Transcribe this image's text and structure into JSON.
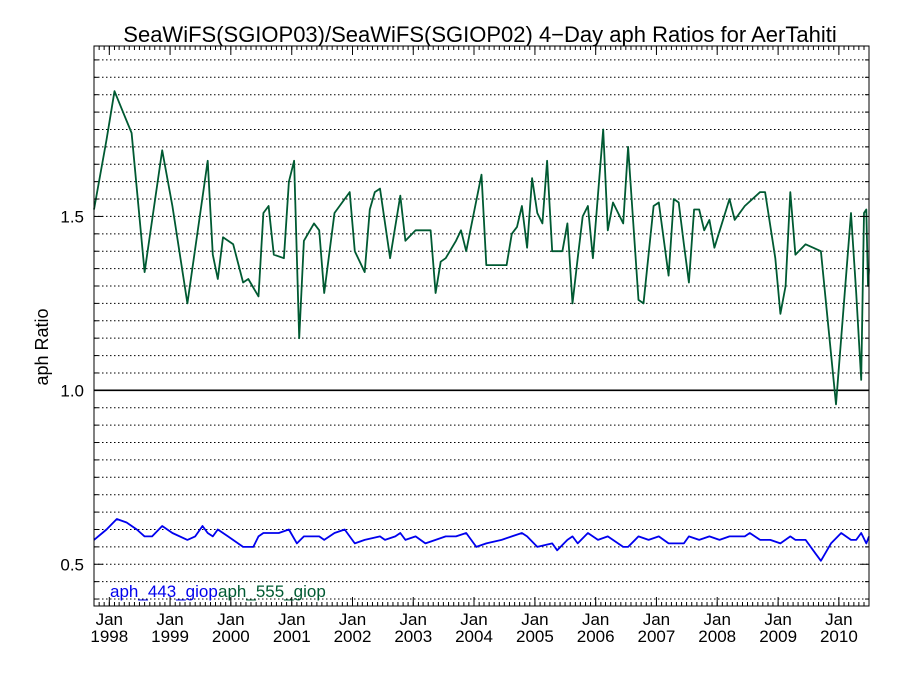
{
  "chart_data": {
    "type": "line",
    "title": "SeaWiFS(SGIOP03)/SeaWiFS(SGIOP02) 4−Day aph Ratios for AerTahiti",
    "xlabel": "",
    "ylabel": "aph Ratio",
    "xlim": [
      "1997-10-01",
      "2010-07-01"
    ],
    "ylim": [
      0.38,
      1.99
    ],
    "y_ticks": [
      "0.5",
      "1.0",
      "1.5"
    ],
    "x_ticks": [
      {
        "date": "1998-01-01",
        "month": "Jan",
        "year": "1998"
      },
      {
        "date": "1999-01-01",
        "month": "Jan",
        "year": "1999"
      },
      {
        "date": "2000-01-01",
        "month": "Jan",
        "year": "2000"
      },
      {
        "date": "2001-01-01",
        "month": "Jan",
        "year": "2001"
      },
      {
        "date": "2002-01-01",
        "month": "Jan",
        "year": "2002"
      },
      {
        "date": "2003-01-01",
        "month": "Jan",
        "year": "2003"
      },
      {
        "date": "2004-01-01",
        "month": "Jan",
        "year": "2004"
      },
      {
        "date": "2005-01-01",
        "month": "Jan",
        "year": "2005"
      },
      {
        "date": "2006-01-01",
        "month": "Jan",
        "year": "2006"
      },
      {
        "date": "2007-01-01",
        "month": "Jan",
        "year": "2007"
      },
      {
        "date": "2008-01-01",
        "month": "Jan",
        "year": "2008"
      },
      {
        "date": "2009-01-01",
        "month": "Jan",
        "year": "2009"
      },
      {
        "date": "2010-01-01",
        "month": "Jan",
        "year": "2010"
      }
    ],
    "reference_line": 1.0,
    "grid": true,
    "legend_placement": "bottom-left",
    "series": [
      {
        "name": "aph_443_giop",
        "color": "#0000ee",
        "points": [
          [
            "1997-10-01",
            0.57
          ],
          [
            "1997-12-15",
            0.6
          ],
          [
            "1998-02-15",
            0.63
          ],
          [
            "1998-04-15",
            0.62
          ],
          [
            "1998-06-15",
            0.6
          ],
          [
            "1998-08-01",
            0.58
          ],
          [
            "1998-09-15",
            0.58
          ],
          [
            "1998-11-15",
            0.61
          ],
          [
            "1999-01-15",
            0.59
          ],
          [
            "1999-04-15",
            0.57
          ],
          [
            "1999-06-01",
            0.58
          ],
          [
            "1999-07-15",
            0.61
          ],
          [
            "1999-08-15",
            0.59
          ],
          [
            "1999-09-15",
            0.58
          ],
          [
            "1999-10-15",
            0.6
          ],
          [
            "1999-12-15",
            0.58
          ],
          [
            "2000-03-15",
            0.55
          ],
          [
            "2000-05-15",
            0.55
          ],
          [
            "2000-06-15",
            0.58
          ],
          [
            "2000-07-15",
            0.59
          ],
          [
            "2000-10-15",
            0.59
          ],
          [
            "2000-12-15",
            0.6
          ],
          [
            "2001-02-01",
            0.56
          ],
          [
            "2001-03-15",
            0.58
          ],
          [
            "2001-06-15",
            0.58
          ],
          [
            "2001-07-15",
            0.57
          ],
          [
            "2001-09-15",
            0.59
          ],
          [
            "2001-11-15",
            0.6
          ],
          [
            "2002-01-15",
            0.56
          ],
          [
            "2002-03-15",
            0.57
          ],
          [
            "2002-06-15",
            0.58
          ],
          [
            "2002-07-15",
            0.57
          ],
          [
            "2002-09-15",
            0.58
          ],
          [
            "2002-10-15",
            0.59
          ],
          [
            "2002-11-15",
            0.57
          ],
          [
            "2003-01-15",
            0.58
          ],
          [
            "2003-03-15",
            0.56
          ],
          [
            "2003-05-15",
            0.57
          ],
          [
            "2003-07-15",
            0.58
          ],
          [
            "2003-09-15",
            0.58
          ],
          [
            "2003-11-15",
            0.59
          ],
          [
            "2004-01-15",
            0.55
          ],
          [
            "2004-03-15",
            0.56
          ],
          [
            "2004-06-15",
            0.57
          ],
          [
            "2004-08-15",
            0.58
          ],
          [
            "2004-10-15",
            0.59
          ],
          [
            "2004-11-15",
            0.58
          ],
          [
            "2005-01-15",
            0.55
          ],
          [
            "2005-04-15",
            0.56
          ],
          [
            "2005-05-15",
            0.54
          ],
          [
            "2005-07-15",
            0.57
          ],
          [
            "2005-08-15",
            0.58
          ],
          [
            "2005-09-15",
            0.56
          ],
          [
            "2005-11-15",
            0.59
          ],
          [
            "2006-01-15",
            0.57
          ],
          [
            "2006-03-15",
            0.58
          ],
          [
            "2006-06-15",
            0.55
          ],
          [
            "2006-07-15",
            0.55
          ],
          [
            "2006-09-15",
            0.58
          ],
          [
            "2006-11-15",
            0.57
          ],
          [
            "2007-01-15",
            0.58
          ],
          [
            "2007-03-15",
            0.56
          ],
          [
            "2007-06-15",
            0.56
          ],
          [
            "2007-07-15",
            0.58
          ],
          [
            "2007-09-15",
            0.57
          ],
          [
            "2007-11-15",
            0.58
          ],
          [
            "2008-01-15",
            0.57
          ],
          [
            "2008-03-15",
            0.58
          ],
          [
            "2008-06-15",
            0.58
          ],
          [
            "2008-07-15",
            0.59
          ],
          [
            "2008-09-15",
            0.57
          ],
          [
            "2008-11-15",
            0.57
          ],
          [
            "2009-01-15",
            0.56
          ],
          [
            "2009-03-15",
            0.58
          ],
          [
            "2009-04-15",
            0.57
          ],
          [
            "2009-06-15",
            0.57
          ],
          [
            "2009-08-15",
            0.53
          ],
          [
            "2009-09-15",
            0.51
          ],
          [
            "2009-11-15",
            0.56
          ],
          [
            "2010-01-15",
            0.59
          ],
          [
            "2010-03-15",
            0.57
          ],
          [
            "2010-04-15",
            0.57
          ],
          [
            "2010-05-15",
            0.59
          ],
          [
            "2010-06-15",
            0.56
          ],
          [
            "2010-07-01",
            0.58
          ]
        ]
      },
      {
        "name": "aph_555_giop",
        "color": "#005a32",
        "points": [
          [
            "1997-10-01",
            1.52
          ],
          [
            "1997-12-15",
            1.72
          ],
          [
            "1998-02-01",
            1.86
          ],
          [
            "1998-05-15",
            1.74
          ],
          [
            "1998-08-01",
            1.34
          ],
          [
            "1998-11-15",
            1.69
          ],
          [
            "1999-01-15",
            1.53
          ],
          [
            "1999-04-15",
            1.25
          ],
          [
            "1999-08-15",
            1.66
          ],
          [
            "1999-09-15",
            1.39
          ],
          [
            "1999-10-15",
            1.32
          ],
          [
            "1999-11-15",
            1.44
          ],
          [
            "2000-01-15",
            1.42
          ],
          [
            "2000-03-15",
            1.31
          ],
          [
            "2000-04-15",
            1.32
          ],
          [
            "2000-06-15",
            1.27
          ],
          [
            "2000-07-15",
            1.51
          ],
          [
            "2000-08-15",
            1.53
          ],
          [
            "2000-09-15",
            1.39
          ],
          [
            "2000-11-15",
            1.38
          ],
          [
            "2000-12-15",
            1.6
          ],
          [
            "2001-01-15",
            1.66
          ],
          [
            "2001-02-15",
            1.15
          ],
          [
            "2001-03-15",
            1.43
          ],
          [
            "2001-05-15",
            1.48
          ],
          [
            "2001-06-15",
            1.46
          ],
          [
            "2001-07-15",
            1.28
          ],
          [
            "2001-09-15",
            1.51
          ],
          [
            "2001-11-15",
            1.55
          ],
          [
            "2001-12-15",
            1.57
          ],
          [
            "2002-01-15",
            1.4
          ],
          [
            "2002-03-15",
            1.34
          ],
          [
            "2002-04-15",
            1.52
          ],
          [
            "2002-05-15",
            1.57
          ],
          [
            "2002-06-15",
            1.58
          ],
          [
            "2002-08-15",
            1.38
          ],
          [
            "2002-10-15",
            1.56
          ],
          [
            "2002-11-15",
            1.43
          ],
          [
            "2003-01-15",
            1.46
          ],
          [
            "2003-03-15",
            1.46
          ],
          [
            "2003-04-15",
            1.46
          ],
          [
            "2003-05-15",
            1.28
          ],
          [
            "2003-06-15",
            1.37
          ],
          [
            "2003-07-15",
            1.38
          ],
          [
            "2003-09-15",
            1.43
          ],
          [
            "2003-10-15",
            1.46
          ],
          [
            "2003-11-15",
            1.4
          ],
          [
            "2004-02-15",
            1.62
          ],
          [
            "2004-03-15",
            1.36
          ],
          [
            "2004-07-15",
            1.36
          ],
          [
            "2004-08-15",
            1.45
          ],
          [
            "2004-09-15",
            1.47
          ],
          [
            "2004-10-15",
            1.53
          ],
          [
            "2004-11-15",
            1.41
          ],
          [
            "2004-12-15",
            1.61
          ],
          [
            "2005-01-15",
            1.51
          ],
          [
            "2005-02-15",
            1.48
          ],
          [
            "2005-03-15",
            1.66
          ],
          [
            "2005-04-15",
            1.4
          ],
          [
            "2005-05-15",
            1.4
          ],
          [
            "2005-06-15",
            1.4
          ],
          [
            "2005-07-15",
            1.48
          ],
          [
            "2005-08-15",
            1.25
          ],
          [
            "2005-09-15",
            1.38
          ],
          [
            "2005-10-15",
            1.5
          ],
          [
            "2005-11-15",
            1.53
          ],
          [
            "2005-12-15",
            1.38
          ],
          [
            "2006-02-15",
            1.75
          ],
          [
            "2006-03-15",
            1.46
          ],
          [
            "2006-04-15",
            1.54
          ],
          [
            "2006-06-15",
            1.48
          ],
          [
            "2006-07-15",
            1.7
          ],
          [
            "2006-09-15",
            1.26
          ],
          [
            "2006-10-15",
            1.25
          ],
          [
            "2006-12-15",
            1.53
          ],
          [
            "2007-01-15",
            1.54
          ],
          [
            "2007-03-15",
            1.33
          ],
          [
            "2007-04-15",
            1.55
          ],
          [
            "2007-05-15",
            1.54
          ],
          [
            "2007-06-15",
            1.42
          ],
          [
            "2007-07-15",
            1.31
          ],
          [
            "2007-08-15",
            1.52
          ],
          [
            "2007-09-15",
            1.52
          ],
          [
            "2007-10-15",
            1.46
          ],
          [
            "2007-11-15",
            1.49
          ],
          [
            "2007-12-15",
            1.41
          ],
          [
            "2008-03-15",
            1.55
          ],
          [
            "2008-04-15",
            1.49
          ],
          [
            "2008-06-15",
            1.53
          ],
          [
            "2008-09-15",
            1.57
          ],
          [
            "2008-10-15",
            1.57
          ],
          [
            "2008-12-15",
            1.38
          ],
          [
            "2009-01-15",
            1.22
          ],
          [
            "2009-02-15",
            1.3
          ],
          [
            "2009-03-15",
            1.57
          ],
          [
            "2009-04-15",
            1.39
          ],
          [
            "2009-06-15",
            1.42
          ],
          [
            "2009-09-15",
            1.4
          ],
          [
            "2009-12-15",
            0.96
          ],
          [
            "2010-03-15",
            1.51
          ],
          [
            "2010-04-15",
            1.28
          ],
          [
            "2010-05-15",
            1.03
          ],
          [
            "2010-06-01",
            1.51
          ],
          [
            "2010-06-15",
            1.52
          ],
          [
            "2010-06-25",
            1.3
          ],
          [
            "2010-07-01",
            1.35
          ]
        ]
      }
    ]
  }
}
